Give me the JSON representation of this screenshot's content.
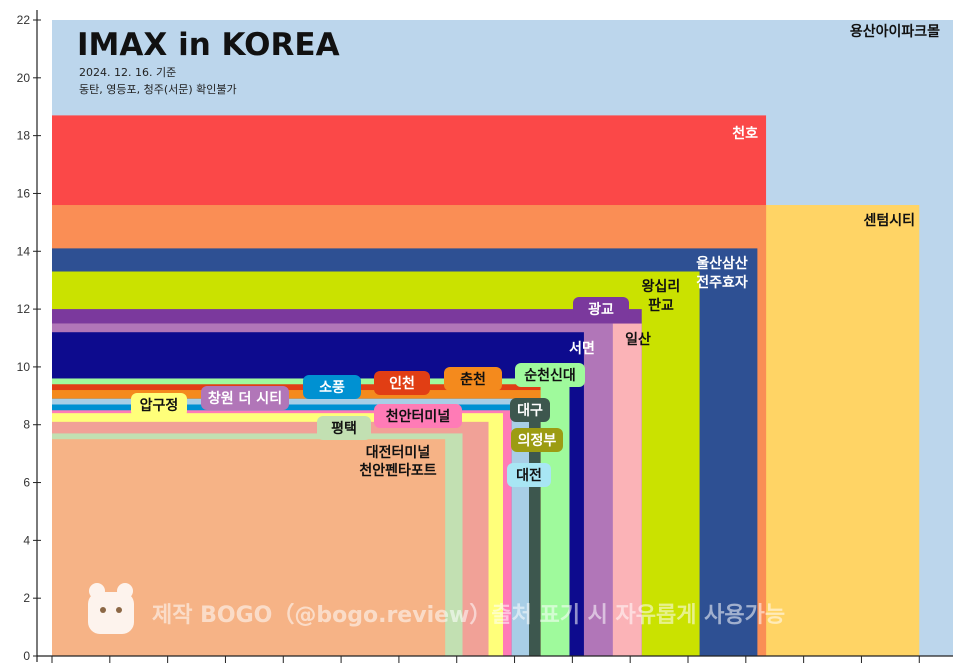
{
  "chart_data": {
    "type": "bar",
    "title": "IMAX in KOREA",
    "subtitle_lines": [
      "2024. 12. 16. 기준",
      "동탄, 영등포, 청주(서문) 확인불가"
    ],
    "watermark": "제작  BOGO（@bogo.review）출처  표기  시  자유롭게  사용가능",
    "ylim": [
      0,
      22
    ],
    "yticks": [
      0,
      2,
      4,
      6,
      8,
      10,
      12,
      14,
      16,
      18,
      20,
      22
    ],
    "grid": false,
    "screens": [
      {
        "name": "용산아이파크몰",
        "width": 31.4,
        "height": 22.0,
        "color": "#bcd6ec",
        "text": "#111111"
      },
      {
        "name": "센텀시티",
        "width": 30.0,
        "height": 15.6,
        "color": "#ffd465",
        "text": "#111111"
      },
      {
        "name": "천호",
        "width": 24.7,
        "height": 18.7,
        "color": "#fb4848",
        "text": "#ffffff"
      },
      {
        "name": "",
        "width": 24.7,
        "height": 15.6,
        "color": "#fa8e55",
        "text": "#ffffff"
      },
      {
        "name": "울산삼산\n전주효자",
        "width": 24.4,
        "height": 14.1,
        "color": "#2e5093",
        "text": "#ffffff"
      },
      {
        "name": "왕십리\n판교",
        "width": 22.4,
        "height": 13.3,
        "color": "#cae200",
        "text": "#111111"
      },
      {
        "name": "광교",
        "width": 20.4,
        "height": 12.0,
        "color": "#7b399d",
        "text": "#ffffff"
      },
      {
        "name": "일산",
        "width": 20.4,
        "height": 11.5,
        "color": "#fbb3b7",
        "text": "#111111"
      },
      {
        "name": "",
        "width": 19.4,
        "height": 11.5,
        "color": "#b176b8",
        "text": "#ffffff"
      },
      {
        "name": "서면",
        "width": 18.4,
        "height": 11.2,
        "color": "#0d0b8e",
        "text": "#ffffff"
      },
      {
        "name": "순천신대",
        "width": 17.9,
        "height": 9.6,
        "color": "#9ffa9c",
        "text": "#111111"
      },
      {
        "name": "",
        "width": 16.9,
        "height": 9.4,
        "color": "#e13e14",
        "text": "#ffffff"
      },
      {
        "name": "",
        "width": 16.9,
        "height": 9.2,
        "color": "#f48a1d",
        "text": "#111111"
      },
      {
        "name": "대구",
        "width": 16.9,
        "height": 8.9,
        "color": "#3d574e",
        "text": "#ffffff"
      },
      {
        "name": "",
        "width": 16.5,
        "height": 8.9,
        "color": "#a8cee6",
        "text": "#111111"
      },
      {
        "name": "",
        "width": 15.9,
        "height": 8.7,
        "color": "#0091d2",
        "text": "#ffffff"
      },
      {
        "name": "",
        "width": 15.9,
        "height": 8.5,
        "color": "#ff7bb6",
        "text": "#ffffff"
      },
      {
        "name": "",
        "width": 15.6,
        "height": 8.4,
        "color": "#ffff7a",
        "text": "#111111"
      },
      {
        "name": "",
        "width": 15.1,
        "height": 8.1,
        "color": "#f1a197",
        "text": "#111111"
      },
      {
        "name": "",
        "width": 14.2,
        "height": 7.7,
        "color": "#c2e0b2",
        "text": "#111111"
      },
      {
        "name": "대전터미널\n천안펜타포트",
        "width": 13.6,
        "height": 7.5,
        "color": "#f6b386",
        "text": "#111111"
      }
    ],
    "tags": [
      {
        "name": "압구정",
        "bg": "#ffff7a",
        "text": "#111111"
      },
      {
        "name": "창원 더 시티",
        "bg": "#b176b8",
        "text": "#ffffff"
      },
      {
        "name": "소풍",
        "bg": "#0091d2",
        "text": "#ffffff"
      },
      {
        "name": "인천",
        "bg": "#e13e14",
        "text": "#ffffff"
      },
      {
        "name": "춘천",
        "bg": "#f48a1d",
        "text": "#111111"
      },
      {
        "name": "천안터미널",
        "bg": "#ff7bb6",
        "text": "#111111"
      },
      {
        "name": "평택",
        "bg": "#c2e0b2",
        "text": "#111111"
      },
      {
        "name": "의정부",
        "bg": "#9c9c12",
        "text": "#ffffff"
      },
      {
        "name": "대전",
        "bg": "#a8e6f4",
        "text": "#111111"
      }
    ]
  }
}
